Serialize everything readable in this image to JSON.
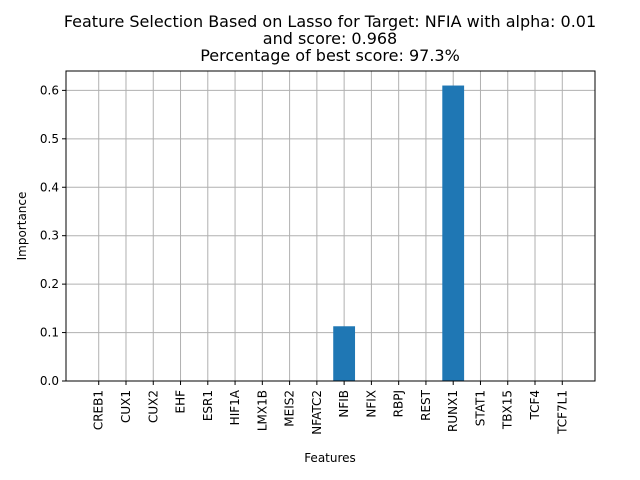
{
  "chart_data": {
    "type": "bar",
    "title": [
      "Feature Selection Based on Lasso for Target: NFIA with alpha: 0.01",
      "and score: 0.968",
      "Percentage of best score: 97.3%"
    ],
    "xlabel": "Features",
    "ylabel": "Importance",
    "categories": [
      "CREB1",
      "CUX1",
      "CUX2",
      "EHF",
      "ESR1",
      "HIF1A",
      "LMX1B",
      "MEIS2",
      "NFATC2",
      "NFIB",
      "NFIX",
      "RBPJ",
      "REST",
      "RUNX1",
      "STAT1",
      "TBX15",
      "TCF4",
      "TCF7L1"
    ],
    "values": [
      0,
      0,
      0,
      0,
      0,
      0,
      0,
      0,
      0,
      0.113,
      0,
      0,
      0,
      0.61,
      0,
      0,
      0,
      0
    ],
    "ylim": [
      0,
      0.64
    ],
    "yticks": [
      0.0,
      0.1,
      0.2,
      0.3,
      0.4,
      0.5,
      0.6
    ],
    "ytick_labels": [
      "0.0",
      "0.1",
      "0.2",
      "0.3",
      "0.4",
      "0.5",
      "0.6"
    ],
    "grid": true,
    "bar_color": "#1f77b4",
    "grid_color": "#b0b0b0"
  }
}
